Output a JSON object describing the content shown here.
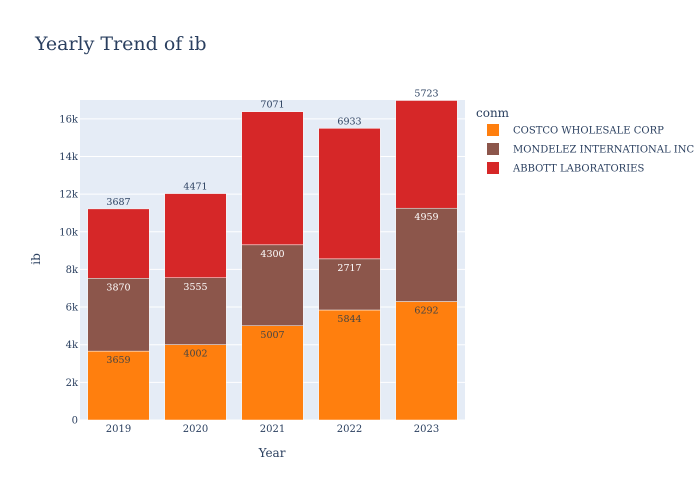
{
  "chart_data": {
    "type": "bar",
    "stacked": true,
    "title": "Yearly Trend of ib",
    "xlabel": "Year",
    "ylabel": "ib",
    "legend_title": "conm",
    "legend_placement": "right",
    "categories": [
      "2019",
      "2020",
      "2021",
      "2022",
      "2023"
    ],
    "ylim": [
      0,
      17000
    ],
    "yticks": [
      0,
      2000,
      4000,
      6000,
      8000,
      10000,
      12000,
      14000,
      16000
    ],
    "ytick_labels": [
      "0",
      "2k",
      "4k",
      "6k",
      "8k",
      "10k",
      "12k",
      "14k",
      "16k"
    ],
    "grid": true,
    "series": [
      {
        "name": "COSTCO WHOLESALE CORP",
        "values": [
          3659,
          4002,
          5007,
          5844,
          6292
        ],
        "color": "#ff7f0e",
        "label_color": "#444444"
      },
      {
        "name": "MONDELEZ INTERNATIONAL INC",
        "values": [
          3870,
          3555,
          4300,
          2717,
          4959
        ],
        "color": "#8c564b",
        "label_color": "#ffffff"
      },
      {
        "name": "ABBOTT LABORATORIES",
        "values": [
          3687,
          4471,
          7071,
          6933,
          5723
        ],
        "color": "#d62728",
        "label_color": "#2a3f5f"
      }
    ],
    "plot_background": "#e5ecf6"
  }
}
